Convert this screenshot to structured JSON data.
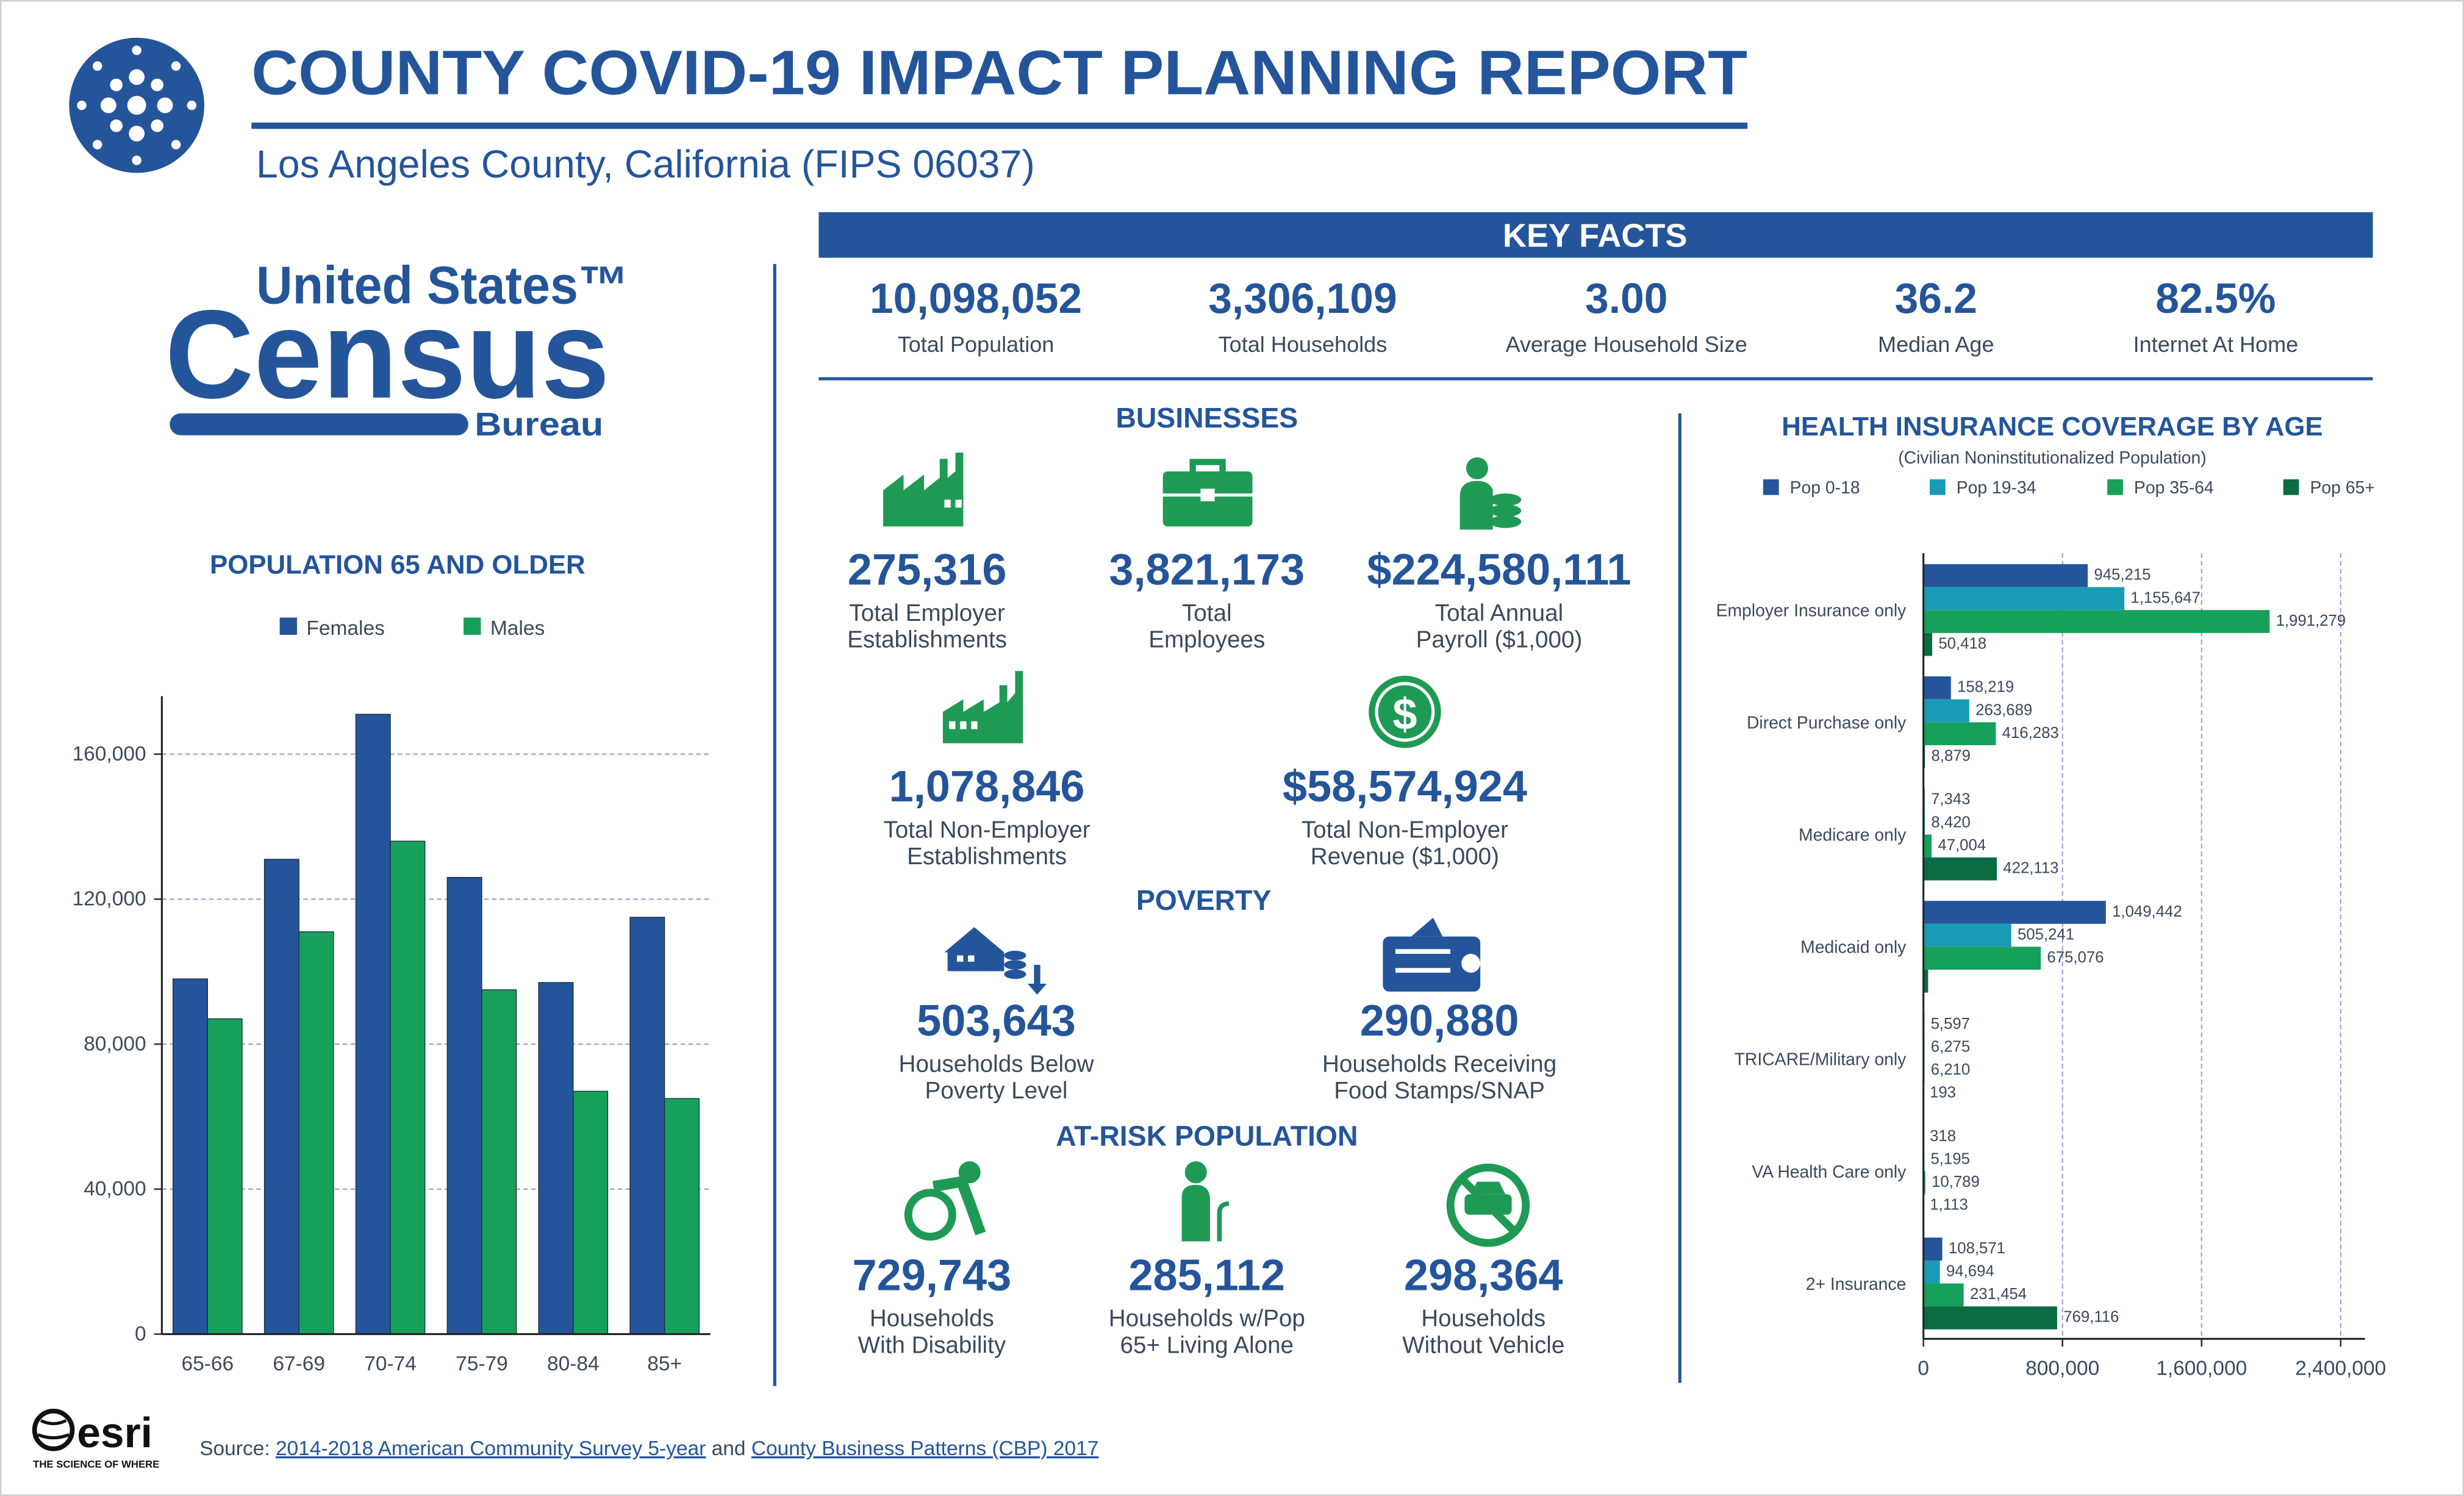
{
  "header": {
    "title": "COUNTY COVID-19 IMPACT PLANNING REPORT",
    "subtitle": "Los Angeles County, California (FIPS 06037)"
  },
  "census_logo": {
    "line1": "United States™",
    "line2": "Census",
    "line3": "Bureau"
  },
  "key_facts": {
    "title": "KEY FACTS",
    "items": [
      {
        "value": "10,098,052",
        "label": "Total Population"
      },
      {
        "value": "3,306,109",
        "label": "Total Households"
      },
      {
        "value": "3.00",
        "label": "Average Household Size"
      },
      {
        "value": "36.2",
        "label": "Median Age"
      },
      {
        "value": "82.5%",
        "label": "Internet At Home"
      }
    ]
  },
  "businesses": {
    "title": "BUSINESSES",
    "items": [
      {
        "value": "275,316",
        "label": [
          "Total Employer",
          "Establishments"
        ]
      },
      {
        "value": "3,821,173",
        "label": [
          "Total",
          "Employees"
        ]
      },
      {
        "value": "$224,580,111",
        "label": [
          "Total Annual",
          "Payroll ($1,000)"
        ]
      },
      {
        "value": "1,078,846",
        "label": [
          "Total Non-Employer",
          "Establishments"
        ]
      },
      {
        "value": "$58,574,924",
        "label": [
          "Total Non-Employer",
          "Revenue ($1,000)"
        ]
      }
    ]
  },
  "poverty": {
    "title": "POVERTY",
    "items": [
      {
        "value": "503,643",
        "label": [
          "Households Below",
          "Poverty Level"
        ]
      },
      {
        "value": "290,880",
        "label": [
          "Households Receiving",
          "Food Stamps/SNAP"
        ]
      }
    ]
  },
  "at_risk": {
    "title": "AT-RISK POPULATION",
    "items": [
      {
        "value": "729,743",
        "label": [
          "Households",
          "With Disability"
        ]
      },
      {
        "value": "285,112",
        "label": [
          "Households w/Pop",
          "65+ Living Alone"
        ]
      },
      {
        "value": "298,364",
        "label": [
          "Households",
          "Without Vehicle"
        ]
      }
    ]
  },
  "source": {
    "prefix": "Source:",
    "link1": "2014-2018 American Community Survey 5-year",
    "joiner": "and",
    "link2": "County Business Patterns (CBP) 2017"
  },
  "esri": {
    "name": "esri",
    "tagline": "THE SCIENCE OF WHERE"
  },
  "chart_data": [
    {
      "type": "bar",
      "orientation": "vertical",
      "title": "POPULATION 65 AND OLDER",
      "categories": [
        "65-66",
        "67-69",
        "70-74",
        "75-79",
        "80-84",
        "85+"
      ],
      "series": [
        {
          "name": "Females",
          "color": "#24559a",
          "values": [
            98000,
            131000,
            171000,
            126000,
            97000,
            115000
          ]
        },
        {
          "name": "Males",
          "color": "#16a05b",
          "values": [
            87000,
            111000,
            136000,
            95000,
            67000,
            65000
          ]
        }
      ],
      "ylim": [
        0,
        176000
      ],
      "yticks": [
        0,
        {
          "value": 40000,
          "label": "40,000"
        },
        {
          "value": 80000,
          "label": "80,000"
        },
        {
          "value": 120000,
          "label": "120,000"
        },
        {
          "value": 160000,
          "label": "160,000"
        }
      ],
      "grid": true
    },
    {
      "type": "bar",
      "orientation": "horizontal",
      "title": "HEALTH INSURANCE COVERAGE BY AGE",
      "subtitle": "(Civilian Noninstitutionalized Population)",
      "categories": [
        "Employer Insurance only",
        "Direct Purchase only",
        "Medicare only",
        "Medicaid only",
        "TRICARE/Military only",
        "VA Health Care only",
        "2+ Insurance"
      ],
      "series": [
        {
          "name": "Pop 0-18",
          "color": "#24559a",
          "values": [
            945215,
            158219,
            7343,
            1049442,
            5597,
            318,
            108571
          ],
          "value_labels": [
            "945,215",
            "158,219",
            "7,343",
            "1,049,442",
            "5,597",
            "318",
            "108,571"
          ]
        },
        {
          "name": "Pop 19-34",
          "color": "#1a9bb5",
          "values": [
            1155647,
            263689,
            8420,
            505241,
            6275,
            5195,
            94694
          ],
          "value_labels": [
            "1,155,647",
            "263,689",
            "8,420",
            "505,241",
            "6,275",
            "5,195",
            "94,694"
          ]
        },
        {
          "name": "Pop 35-64",
          "color": "#16a05b",
          "values": [
            1991279,
            416283,
            47004,
            675076,
            6210,
            10789,
            231454
          ],
          "value_labels": [
            "1,991,279",
            "416,283",
            "47,004",
            "675,076",
            "6,210",
            "10,789",
            "231,454"
          ]
        },
        {
          "name": "Pop 65+",
          "color": "#0b6b42",
          "values": [
            50418,
            8879,
            422113,
            27000,
            193,
            1113,
            769116
          ],
          "value_labels": [
            "50,418",
            "8,879",
            "422,113",
            null,
            "193",
            "1,113",
            "769,116"
          ]
        }
      ],
      "xlim": [
        0,
        2540000
      ],
      "xticks": [
        0,
        {
          "value": 800000,
          "label": "800,000"
        },
        {
          "value": 1600000,
          "label": "1,600,000"
        },
        {
          "value": 2400000,
          "label": "2,400,000"
        }
      ],
      "grid": true
    }
  ]
}
